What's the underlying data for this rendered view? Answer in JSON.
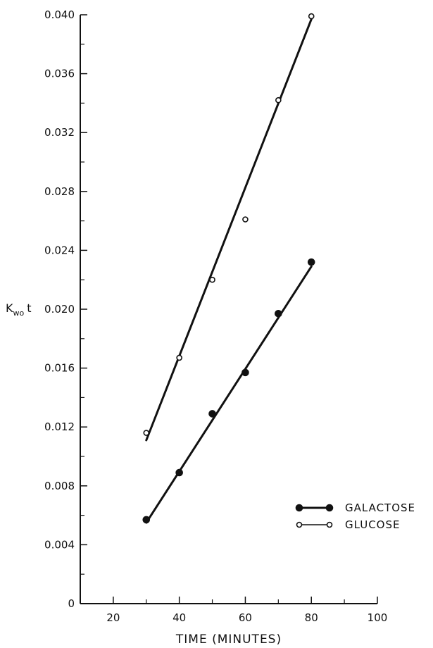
{
  "chart_data": {
    "type": "scatter",
    "title": "",
    "xlabel": "TIME (MINUTES)",
    "ylabel": {
      "main": "K",
      "sub": "wo",
      "suffix": "t"
    },
    "xlim": [
      10,
      100
    ],
    "ylim": [
      0,
      0.04
    ],
    "x_ticks": [
      20,
      40,
      60,
      80,
      100
    ],
    "x_tick_labels": [
      "20",
      "40",
      "60",
      "80",
      "100"
    ],
    "x_minor_ticks": [
      10,
      30,
      50,
      70,
      90
    ],
    "y_ticks": [
      0,
      0.004,
      0.008,
      0.012,
      0.016,
      0.02,
      0.024,
      0.028,
      0.032,
      0.036,
      0.04
    ],
    "y_tick_labels": [
      "0",
      "0.004",
      "0.008",
      "0.012",
      "0.016",
      "0.020",
      "0.024",
      "0.028",
      "0.032",
      "0.036",
      "0.040"
    ],
    "y_minor_ticks": [
      0.002,
      0.006,
      0.01,
      0.014,
      0.018,
      0.022,
      0.026,
      0.03,
      0.034,
      0.038
    ],
    "grid": false,
    "legend_placement": "bottom-right",
    "series": [
      {
        "name": "GALACTOSE",
        "marker": "filled-circle",
        "color": "#111111",
        "x": [
          30,
          40,
          50,
          60,
          70,
          80
        ],
        "y": [
          0.0057,
          0.0089,
          0.0129,
          0.0157,
          0.0197,
          0.0232
        ],
        "fit_line": {
          "x": [
            30,
            80
          ],
          "y": [
            0.0055,
            0.0229
          ]
        }
      },
      {
        "name": "GLUCOSE",
        "marker": "open-circle",
        "color": "#111111",
        "x": [
          30,
          40,
          50,
          60,
          70,
          80
        ],
        "y": [
          0.0116,
          0.0167,
          0.022,
          0.0261,
          0.0342,
          0.0399
        ],
        "fit_line": {
          "x": [
            30,
            80
          ],
          "y": [
            0.0111,
            0.0397
          ]
        }
      }
    ]
  }
}
